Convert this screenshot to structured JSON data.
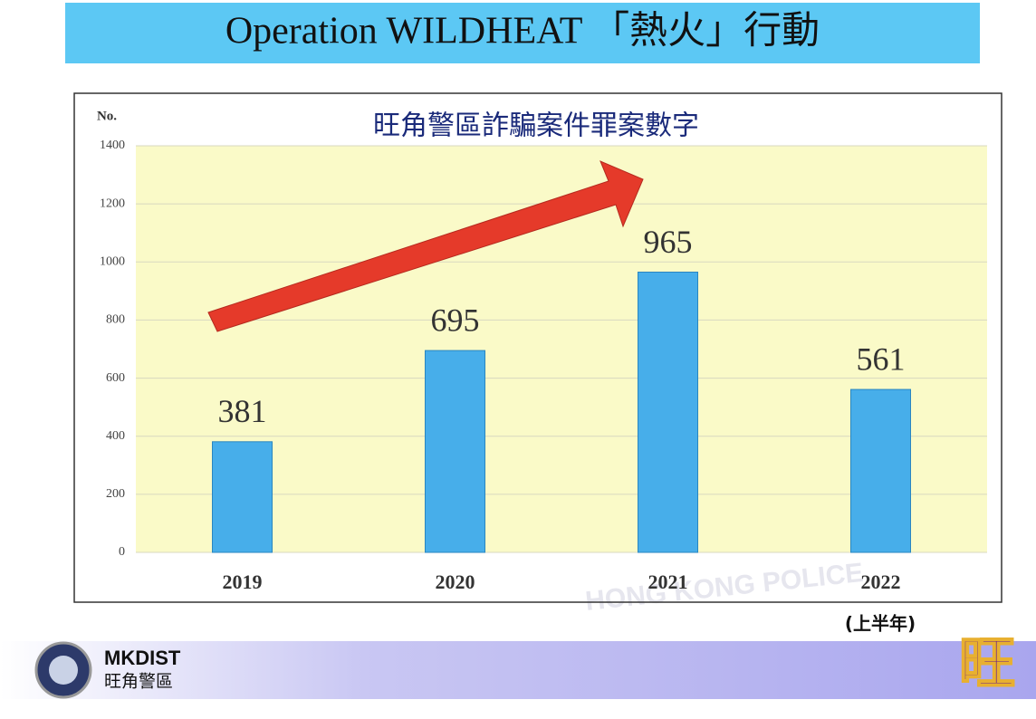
{
  "slide_title": "Operation WILDHEAT 「熱火」行動",
  "chart_data": {
    "type": "bar",
    "title": "旺角警區詐騙案件罪案數字",
    "y_label": "No.",
    "categories": [
      "2019",
      "2020",
      "2021",
      "2022"
    ],
    "values": [
      381,
      695,
      965,
      561
    ],
    "color": "#47aeea",
    "ylim": [
      0,
      1400
    ],
    "yticks": [
      0,
      200,
      400,
      600,
      800,
      1000,
      1200,
      1400
    ],
    "grid": true,
    "note": "(上半年)"
  },
  "watermark": "HONG KONG POLICE",
  "footer": {
    "district": "MKDIST",
    "district_chinese": "旺角警區",
    "emblem": "旺"
  }
}
